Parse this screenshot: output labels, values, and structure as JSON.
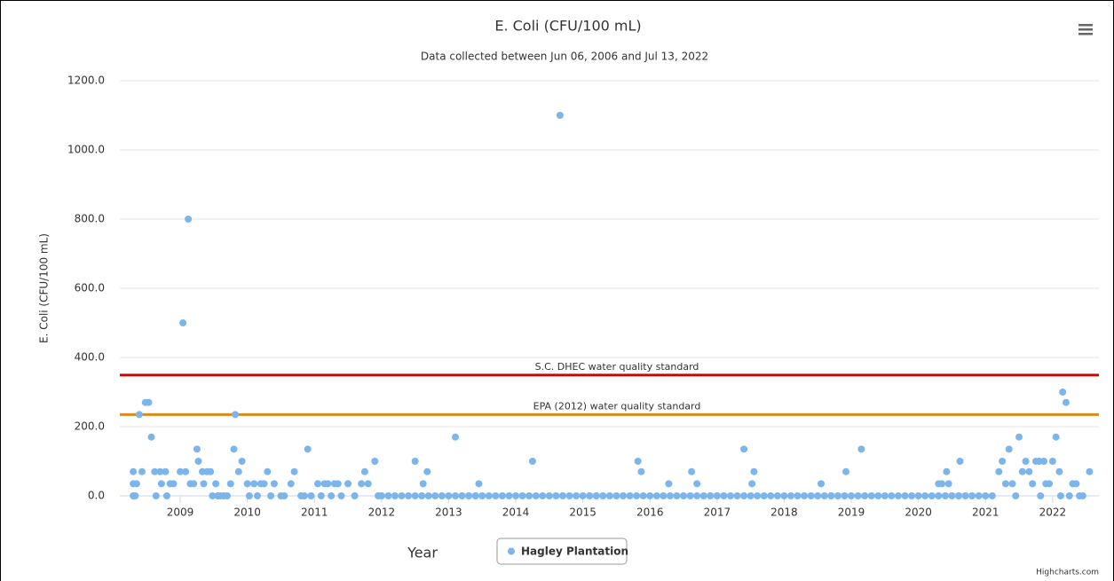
{
  "chart_data": {
    "type": "scatter",
    "title": "E. Coli (CFU/100 mL)",
    "subtitle": "Data collected between Jun 06, 2006 and Jul 13, 2022",
    "x_label": "Year",
    "y_label": "E. Coli (CFU/100 mL)",
    "credits": "Highcharts.com",
    "xlim": [
      2008.1,
      2022.69
    ],
    "xticks": [
      2009,
      2010,
      2011,
      2012,
      2013,
      2014,
      2015,
      2016,
      2017,
      2018,
      2019,
      2020,
      2021,
      2022
    ],
    "ylim": [
      0,
      1200
    ],
    "yticks": [
      {
        "value": 0,
        "label": "0.0"
      },
      {
        "value": 200,
        "label": "200.0"
      },
      {
        "value": 400,
        "label": "400.0"
      },
      {
        "value": 600,
        "label": "600.0"
      },
      {
        "value": 800,
        "label": "800.0"
      },
      {
        "value": 1000,
        "label": "1000.0"
      },
      {
        "value": 1200,
        "label": "1200.0"
      }
    ],
    "grid": true,
    "plot_lines": [
      {
        "value": 349,
        "label": "S.C. DHEC water quality standard",
        "color": "#d40000"
      },
      {
        "value": 235,
        "label": "EPA (2012) water quality standard",
        "color": "#d98c1a"
      }
    ],
    "x": [
      2008.3,
      2008.3,
      2008.3,
      2008.33,
      2008.35,
      2008.39,
      2008.43,
      2008.48,
      2008.53,
      2008.57,
      2008.62,
      2008.64,
      2008.7,
      2008.72,
      2008.78,
      2008.8,
      2008.85,
      2008.9,
      2009.0,
      2009.04,
      2009.08,
      2009.12,
      2009.15,
      2009.2,
      2009.25,
      2009.27,
      2009.33,
      2009.35,
      2009.4,
      2009.45,
      2009.48,
      2009.53,
      2009.56,
      2009.6,
      2009.65,
      2009.7,
      2009.75,
      2009.8,
      2009.82,
      2009.87,
      2009.92,
      2010.0,
      2010.03,
      2010.1,
      2010.15,
      2010.2,
      2010.25,
      2010.3,
      2010.35,
      2010.4,
      2010.5,
      2010.55,
      2010.65,
      2010.7,
      2010.8,
      2010.85,
      2010.9,
      2010.95,
      2011.05,
      2011.1,
      2011.15,
      2011.2,
      2011.25,
      2011.3,
      2011.35,
      2011.4,
      2011.5,
      2011.6,
      2011.7,
      2011.75,
      2011.8,
      2011.9,
      2011.95,
      2012.5,
      2012.62,
      2012.68,
      2013.1,
      2013.45,
      2014.25,
      2014.66,
      2015.82,
      2015.87,
      2016.28,
      2016.62,
      2016.7,
      2017.4,
      2017.52,
      2017.55,
      2018.55,
      2018.92,
      2019.15,
      2020.3,
      2020.35,
      2020.42,
      2020.45,
      2020.62,
      2021.2,
      2021.25,
      2021.3,
      2021.35,
      2021.4,
      2021.45,
      2021.5,
      2021.55,
      2021.6,
      2021.65,
      2021.7,
      2021.75,
      2021.8,
      2021.82,
      2021.87,
      2021.9,
      2021.95,
      2022.0,
      2022.05,
      2022.1,
      2022.12,
      2022.15,
      2022.2,
      2022.25,
      2022.3,
      2022.35,
      2022.4,
      2022.45,
      2022.55,
      2012.0,
      2012.1,
      2012.2,
      2012.3,
      2012.4,
      2012.5,
      2012.6,
      2012.7,
      2012.8,
      2012.9,
      2013.0,
      2013.1,
      2013.2,
      2013.3,
      2013.4,
      2013.5,
      2013.6,
      2013.7,
      2013.8,
      2013.9,
      2014.0,
      2014.1,
      2014.2,
      2014.3,
      2014.4,
      2014.5,
      2014.6,
      2014.7,
      2014.8,
      2014.9,
      2015.0,
      2015.1,
      2015.2,
      2015.3,
      2015.4,
      2015.5,
      2015.6,
      2015.7,
      2015.8,
      2015.9,
      2016.0,
      2016.1,
      2016.2,
      2016.3,
      2016.4,
      2016.5,
      2016.6,
      2016.7,
      2016.8,
      2016.9,
      2017.0,
      2017.1,
      2017.2,
      2017.3,
      2017.4,
      2017.5,
      2017.6,
      2017.7,
      2017.8,
      2017.9,
      2018.0,
      2018.1,
      2018.2,
      2018.3,
      2018.4,
      2018.5,
      2018.6,
      2018.7,
      2018.8,
      2018.9,
      2019.0,
      2019.1,
      2019.2,
      2019.3,
      2019.4,
      2019.5,
      2019.6,
      2019.7,
      2019.8,
      2019.9,
      2020.0,
      2020.1,
      2020.2,
      2020.3,
      2020.4,
      2020.5,
      2020.6,
      2020.7,
      2020.8,
      2020.9,
      2021.0,
      2021.1
    ],
    "series": [
      {
        "name": "Hagley Plantation",
        "color": "#7cb5ec",
        "values": [
          0,
          35,
          70,
          0,
          35,
          235,
          70,
          270,
          270,
          170,
          70,
          0,
          70,
          35,
          70,
          0,
          35,
          35,
          70,
          500,
          70,
          800,
          35,
          35,
          135,
          100,
          70,
          35,
          70,
          70,
          0,
          35,
          0,
          0,
          0,
          0,
          35,
          135,
          235,
          70,
          100,
          35,
          0,
          35,
          0,
          35,
          35,
          70,
          0,
          35,
          0,
          0,
          35,
          70,
          0,
          0,
          135,
          0,
          35,
          0,
          35,
          35,
          0,
          35,
          35,
          0,
          35,
          0,
          35,
          70,
          35,
          100,
          0,
          100,
          35,
          70,
          170,
          35,
          100,
          1100,
          100,
          70,
          35,
          70,
          35,
          135,
          35,
          70,
          35,
          70,
          135,
          35,
          35,
          70,
          35,
          100,
          70,
          100,
          35,
          135,
          35,
          0,
          170,
          70,
          100,
          70,
          35,
          100,
          100,
          0,
          100,
          35,
          35,
          100,
          170,
          70,
          0,
          300,
          270,
          0,
          35,
          35,
          0,
          0,
          70,
          0,
          0,
          0,
          0,
          0,
          0,
          0,
          0,
          0,
          0,
          0,
          0,
          0,
          0,
          0,
          0,
          0,
          0,
          0,
          0,
          0,
          0,
          0,
          0,
          0,
          0,
          0,
          0,
          0,
          0,
          0,
          0,
          0,
          0,
          0,
          0,
          0,
          0,
          0,
          0,
          0,
          0,
          0,
          0,
          0,
          0,
          0,
          0,
          0,
          0,
          0,
          0,
          0,
          0,
          0,
          0,
          0,
          0,
          0,
          0,
          0,
          0,
          0,
          0,
          0,
          0,
          0,
          0,
          0,
          0,
          0,
          0,
          0,
          0,
          0,
          0,
          0,
          0,
          0,
          0,
          0,
          0,
          0,
          0,
          0,
          0,
          0,
          0,
          0,
          0,
          0,
          0
        ]
      }
    ]
  }
}
